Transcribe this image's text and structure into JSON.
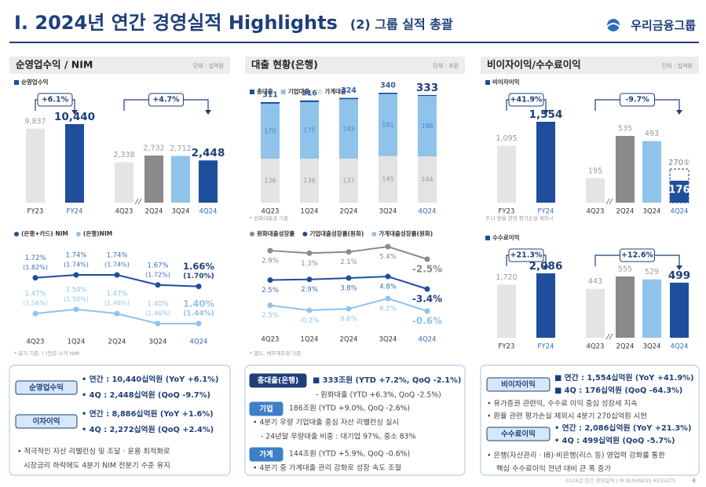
{
  "header": {
    "title": "I. 2024년 연간 경영실적 Highlights",
    "subtitle": "(2) 그룹 실적 총괄",
    "logo": "우리금융그룹"
  },
  "panels": [
    {
      "title": "순영업수익 / NIM",
      "unit": "단위 : 십억원"
    },
    {
      "title": "대출 현황(은행)",
      "unit": "단위 : 조원"
    },
    {
      "title": "비이자이익/수수료이익",
      "unit": "단위 : 십억원"
    }
  ],
  "chart_data": [
    {
      "type": "bar",
      "legend": "순영업수익",
      "annual": {
        "categories": [
          "FY23",
          "FY24"
        ],
        "values": [
          9837,
          10440
        ],
        "value_labels": [
          "9,837",
          "10,440"
        ],
        "colors": [
          "#e4e4e4",
          "#1f4e9c"
        ],
        "change": "+6.1%"
      },
      "quarterly": {
        "categories": [
          "4Q23",
          "2Q24",
          "3Q24",
          "4Q24"
        ],
        "values": [
          2338,
          2732,
          2712,
          2448
        ],
        "value_labels": [
          "2,338",
          "2,732",
          "2,712",
          "2,448"
        ],
        "colors": [
          "#e4e4e4",
          "#8a8a8a",
          "#8fc3ea",
          "#1f4e9c"
        ],
        "change": "+4.7%"
      }
    },
    {
      "type": "line",
      "categories": [
        "4Q23",
        "1Q24",
        "2Q24",
        "3Q24",
        "4Q24"
      ],
      "series": [
        {
          "name": "(은행+카드) NIM",
          "color": "#1f4e9c",
          "values": [
            1.72,
            1.74,
            1.74,
            1.67,
            1.66
          ],
          "value_labels": [
            "1.72%",
            "1.74%",
            "1.74%",
            "1.67%",
            "1.66%"
          ],
          "sub_labels": [
            "(1.82%)",
            "(1.74%)",
            "(1.74%)",
            "(1.72%)",
            "(1.70%)"
          ]
        },
        {
          "name": "(은행)NIM",
          "color": "#8fc3ea",
          "values": [
            1.47,
            1.5,
            1.47,
            1.4,
            1.4
          ],
          "value_labels": [
            "1.47%",
            "1.50%",
            "1.47%",
            "1.40%",
            "1.40%"
          ],
          "sub_labels": [
            "(1.56%)",
            "(1.50%)",
            "(1.48%)",
            "(1.46%)",
            "(1.44%)"
          ]
        }
      ],
      "note": "* 분기 기준, ( )안은 누적 NIM"
    },
    {
      "type": "stacked_bar",
      "categories": [
        "4Q23",
        "1Q24",
        "2Q24",
        "3Q24",
        "4Q24"
      ],
      "totals": {
        "name": "총대출",
        "color": "#1f4e9c",
        "values": [
          311,
          316,
          324,
          340,
          333
        ]
      },
      "series": [
        {
          "name": "가계대출",
          "color": "#e3e3e3",
          "values": [
            136,
            136,
            137,
            145,
            144
          ]
        },
        {
          "name": "기업대출",
          "color": "#8fc3ea",
          "values": [
            170,
            175,
            183,
            191,
            186
          ]
        }
      ],
      "note": "* 원화대출금 기준"
    },
    {
      "type": "line",
      "bands": true,
      "categories": [
        "4Q23",
        "1Q24",
        "2Q24",
        "3Q24",
        "4Q24"
      ],
      "series": [
        {
          "name": "원화대출성장률",
          "color": "#8a8a8a",
          "values": [
            2.9,
            1.3,
            2.1,
            5.4,
            -2.5
          ],
          "value_labels": [
            "2.9%",
            "1.3%",
            "2.1%",
            "5.4%",
            "-2.5%"
          ]
        },
        {
          "name": "기업대출성장률(원화)",
          "color": "#1f4e9c",
          "values": [
            2.5,
            2.9,
            3.8,
            4.8,
            -3.4
          ],
          "value_labels": [
            "2.5%",
            "2.9%",
            "3.8%",
            "4.8%",
            "-3.4%"
          ]
        },
        {
          "name": "가계대출성장률(원화)",
          "color": "#8fc3ea",
          "values": [
            2.5,
            -0.2,
            0.6,
            6.2,
            -0.6
          ],
          "value_labels": [
            "2.5%",
            "-0.2%",
            "0.6%",
            "6.2%",
            "-0.6%"
          ]
        }
      ],
      "note": "* 별도, 채무재조정 기준"
    },
    {
      "type": "bar",
      "legend": "비이자이익",
      "annual": {
        "categories": [
          "FY23",
          "FY24"
        ],
        "values": [
          1095,
          1554
        ],
        "value_labels": [
          "1,095",
          "1,554"
        ],
        "colors": [
          "#e4e4e4",
          "#1f4e9c"
        ],
        "change": "+41.9%"
      },
      "quarterly": {
        "categories": [
          "4Q23",
          "2Q24",
          "3Q24",
          "4Q24"
        ],
        "values": [
          195,
          535,
          493,
          176
        ],
        "colors": [
          "#e4e4e4",
          "#8a8a8a",
          "#8fc3ea",
          "#1f4e9c"
        ],
        "change": "-9.7%",
        "adjusted_values": [
          null,
          null,
          null,
          270
        ],
        "adjusted_labels": [
          null,
          null,
          null,
          "270①"
        ]
      },
      "note": "주1) 환율 관련 평가손실 제외시"
    },
    {
      "type": "bar",
      "legend": "수수료이익",
      "annual": {
        "categories": [
          "FY23",
          "FY24"
        ],
        "values": [
          1720,
          2086
        ],
        "value_labels": [
          "1,720",
          "2,086"
        ],
        "colors": [
          "#e4e4e4",
          "#1f4e9c"
        ],
        "change": "+21.3%"
      },
      "quarterly": {
        "categories": [
          "4Q23",
          "2Q24",
          "3Q24",
          "4Q24"
        ],
        "values": [
          443,
          555,
          529,
          499
        ],
        "colors": [
          "#e4e4e4",
          "#8a8a8a",
          "#8fc3ea",
          "#1f4e9c"
        ],
        "change": "+12.6%"
      }
    }
  ],
  "summary": [
    [
      {
        "tag": "순영업수익"
      },
      {
        "text": "• 연간 : 10,440십억원 (YoY +6.1%)"
      },
      {
        "text": "• 4Q : 2,448십억원 (QoQ -9.7%)"
      },
      {
        "tag": "이자이익"
      },
      {
        "text": "• 연간 : 8,886십억원 (YoY +1.6%)"
      },
      {
        "text": "• 4Q : 2,272십억원 (QoQ +2.4%)"
      },
      {
        "text": "• 적극적인 자산 리밸런싱 및 조달 · 운용 최적화로"
      },
      {
        "text": "시장금리 하락에도 4분기 NIM 전분기 수준 유지"
      }
    ],
    [
      {
        "tag": "총대출(은행)"
      },
      {
        "text": "■ 333조원 (YTD +7.2%, QoQ -2.1%)"
      },
      {
        "text": "- 원화대출 (YTD +6.3%, QoQ -2.5%)"
      },
      {
        "tag": "기업"
      },
      {
        "text": "186조원 (YTD +9.0%, QoQ -2.6%)"
      },
      {
        "text": "• 4분기 우량 기업대출 중심 자산 리밸런싱 실시"
      },
      {
        "text": "- 24년말 우량대출 비중 : 대기업 97%, 중소 83%"
      },
      {
        "tag": "가계"
      },
      {
        "text": "144조원 (YTD +5.9%, QoQ -0.6%)"
      },
      {
        "text": "• 4분기 중 가계대출 관리 강화로 성장 속도 조절"
      }
    ],
    [
      {
        "tag": "비이자이익"
      },
      {
        "text": "■ 연간 : 1,554십억원 (YoY +41.9%)"
      },
      {
        "text": "■ 4Q : 176십억원 (QoQ -64.3%)"
      },
      {
        "text": "• 유가증권 관련익, 수수료 이익 중심 성장세 지속"
      },
      {
        "text": "• 환율 관련 평가손실 제외시 4분기 270십억원 시현"
      },
      {
        "tag": "수수료이익"
      },
      {
        "text": "• 연간 : 2,086십억원 (YoY +21.3%)"
      },
      {
        "text": "• 4Q : 499십억원 (QoQ -5.7%)"
      },
      {
        "text": "• 은행(자산관리 · IB)·비은행(리스 등) 영업력 강화를 통한"
      },
      {
        "text": "핵심 수수료이익 전년 대비 큰 폭 증가"
      }
    ]
  ],
  "footer": {
    "text": "2024년 연간 경영실적 | IR BUSINESS RESULTS",
    "page": "4"
  }
}
